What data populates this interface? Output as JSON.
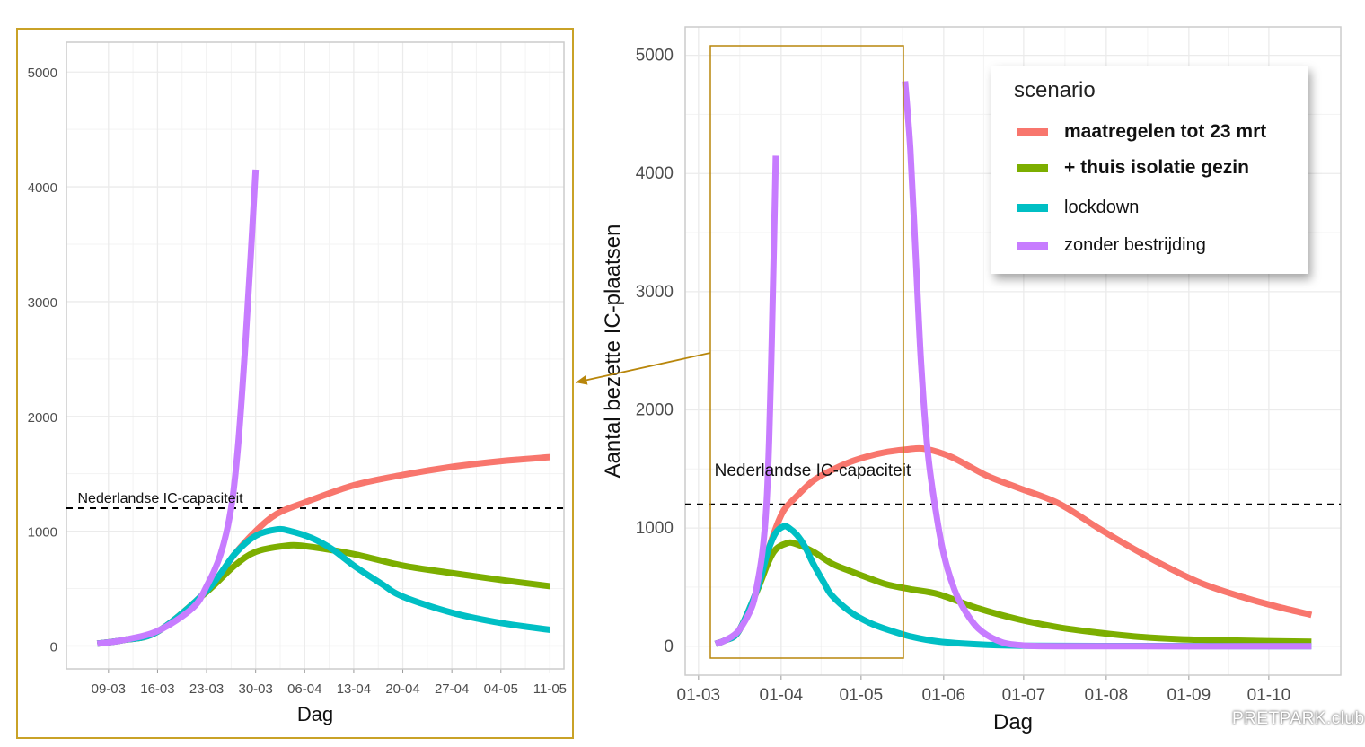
{
  "chart_data": {
    "type": "line",
    "series": [
      {
        "name": "maatregelen tot 23 mrt",
        "color": "#F8766D",
        "bold": true,
        "segments": [
          [
            [
              6.4,
              20
            ],
            [
              10,
              50
            ],
            [
              15,
              125
            ],
            [
              22,
              480
            ],
            [
              26,
              800
            ],
            [
              29,
              1000
            ],
            [
              32,
              1150
            ],
            [
              36,
              1250
            ],
            [
              43,
              1400
            ],
            [
              50,
              1490
            ],
            [
              57,
              1560
            ],
            [
              64,
              1610
            ],
            [
              71,
              1645
            ],
            [
              78,
              1665
            ],
            [
              85,
              1670
            ],
            [
              95,
              1600
            ],
            [
              108,
              1445
            ],
            [
              120,
              1340
            ],
            [
              135,
              1210
            ],
            [
              150,
              1000
            ],
            [
              162,
              840
            ],
            [
              175,
              680
            ],
            [
              189,
              530
            ],
            [
              205,
              410
            ],
            [
              218,
              330
            ],
            [
              230,
              265
            ]
          ]
        ]
      },
      {
        "name": "+ thuis isolatie gezin",
        "color": "#7CAE00",
        "bold": true,
        "segments": [
          [
            [
              6.4,
              20
            ],
            [
              10,
              50
            ],
            [
              15,
              125
            ],
            [
              22,
              470
            ],
            [
              26,
              700
            ],
            [
              29,
              820
            ],
            [
              33,
              870
            ],
            [
              36,
              870
            ],
            [
              43,
              800
            ],
            [
              50,
              700
            ],
            [
              57,
              635
            ],
            [
              64,
              575
            ],
            [
              71,
              520
            ],
            [
              80,
              480
            ],
            [
              90,
              440
            ],
            [
              105,
              320
            ],
            [
              120,
              228
            ],
            [
              135,
              160
            ],
            [
              150,
              115
            ],
            [
              165,
              80
            ],
            [
              180,
              60
            ],
            [
              200,
              48
            ],
            [
              230,
              38
            ]
          ]
        ]
      },
      {
        "name": "lockdown",
        "color": "#00BFC4",
        "bold": false,
        "segments": [
          [
            [
              6.4,
              20
            ],
            [
              10,
              50
            ],
            [
              15,
              125
            ],
            [
              22,
              480
            ],
            [
              26,
              800
            ],
            [
              29,
              960
            ],
            [
              32,
              1015
            ],
            [
              34,
              1000
            ],
            [
              37,
              940
            ],
            [
              40,
              840
            ],
            [
              43,
              700
            ],
            [
              47,
              540
            ],
            [
              50,
              430
            ],
            [
              57,
              290
            ],
            [
              64,
              200
            ],
            [
              71,
              140
            ],
            [
              80,
              80
            ],
            [
              90,
              40
            ],
            [
              105,
              15
            ],
            [
              120,
              5
            ],
            [
              150,
              2
            ],
            [
              230,
              0
            ]
          ]
        ]
      },
      {
        "name": "zonder bestrijding",
        "color": "#C77CFF",
        "bold": false,
        "segments": [
          [
            [
              6.4,
              20
            ],
            [
              10,
              50
            ],
            [
              15,
              130
            ],
            [
              20,
              330
            ],
            [
              22,
              520
            ],
            [
              24,
              800
            ],
            [
              25.5,
              1200
            ],
            [
              26.5,
              1750
            ],
            [
              27.5,
              2600
            ],
            [
              28.3,
              3400
            ],
            [
              29,
              4150
            ]
          ],
          [
            [
              77.5,
              4780
            ],
            [
              79.5,
              4200
            ],
            [
              81.5,
              3300
            ],
            [
              83.5,
              2400
            ],
            [
              86,
              1650
            ],
            [
              89,
              1150
            ],
            [
              92,
              780
            ],
            [
              96,
              480
            ],
            [
              100,
              300
            ],
            [
              105,
              150
            ],
            [
              112,
              50
            ],
            [
              120,
              10
            ],
            [
              140,
              0
            ],
            [
              230,
              0
            ]
          ]
        ]
      }
    ],
    "hline": {
      "value": 1200,
      "label": "Nederlandse IC-capaciteit"
    },
    "panels": [
      {
        "name": "detail",
        "xlabel": "Dag",
        "ylabel": "",
        "xlim": [
          2,
          73
        ],
        "ylim": [
          -200,
          5260
        ],
        "xticks": [
          {
            "day": 8,
            "label": "09-03"
          },
          {
            "day": 15,
            "label": "16-03"
          },
          {
            "day": 22,
            "label": "23-03"
          },
          {
            "day": 29,
            "label": "30-03"
          },
          {
            "day": 36,
            "label": "06-04"
          },
          {
            "day": 43,
            "label": "13-04"
          },
          {
            "day": 50,
            "label": "20-04"
          },
          {
            "day": 57,
            "label": "27-04"
          },
          {
            "day": 64,
            "label": "04-05"
          },
          {
            "day": 71,
            "label": "11-05"
          }
        ],
        "yticks": [
          {
            "value": 0,
            "label": "0"
          },
          {
            "value": 1000,
            "label": "1000"
          },
          {
            "value": 2000,
            "label": "2000"
          },
          {
            "value": 3000,
            "label": "3000"
          },
          {
            "value": 4000,
            "label": "4000"
          },
          {
            "value": 5000,
            "label": "5000"
          }
        ]
      },
      {
        "name": "overview",
        "xlabel": "Dag",
        "ylabel": "Aantal bezette IC-plaatsen",
        "xlim": [
          -5,
          241
        ],
        "ylim": [
          -245,
          5240
        ],
        "xticks": [
          {
            "day": 0,
            "label": "01-03"
          },
          {
            "day": 31,
            "label": "01-04"
          },
          {
            "day": 61,
            "label": "01-05"
          },
          {
            "day": 92,
            "label": "01-06"
          },
          {
            "day": 122,
            "label": "01-07"
          },
          {
            "day": 153,
            "label": "01-08"
          },
          {
            "day": 184,
            "label": "01-09"
          },
          {
            "day": 214,
            "label": "01-10"
          }
        ],
        "yticks": [
          {
            "value": 0,
            "label": "0"
          },
          {
            "value": 1000,
            "label": "1000"
          },
          {
            "value": 2000,
            "label": "2000"
          },
          {
            "value": 3000,
            "label": "3000"
          },
          {
            "value": 4000,
            "label": "4000"
          },
          {
            "value": 5000,
            "label": "5000"
          }
        ]
      }
    ],
    "legend": {
      "title": "scenario",
      "position": "top-right"
    },
    "watermark": "PRETPARK.club"
  }
}
